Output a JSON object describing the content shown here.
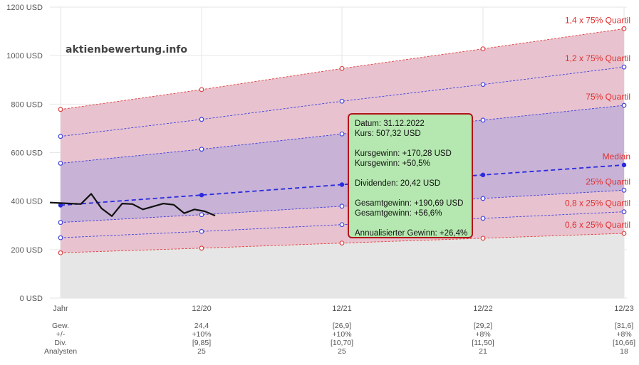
{
  "watermark": "aktienbewertung.info",
  "chart_data": {
    "type": "area",
    "y_unit": "USD",
    "ylim": [
      0,
      1200
    ],
    "y_ticks": [
      "0 USD",
      "200 USD",
      "400 USD",
      "600 USD",
      "800 USD",
      "1000 USD",
      "1200 USD"
    ],
    "x_labels": [
      "Jahr",
      "12/20",
      "12/21",
      "12/22",
      "12/23"
    ],
    "bands": [
      {
        "name": "1,4 x 75% Quartil",
        "values": [
          778,
          860,
          947,
          1028,
          1111
        ],
        "color": "#e04040"
      },
      {
        "name": "1,2 x 75% Quartil",
        "values": [
          667,
          737,
          812,
          881,
          953
        ],
        "color": "#4040e0"
      },
      {
        "name": "75% Quartil",
        "values": [
          556,
          614,
          677,
          734,
          795
        ],
        "color": "#4040e0"
      },
      {
        "name": "Median",
        "values": [
          383,
          425,
          468,
          508,
          549
        ],
        "color": "#2a2ae0"
      },
      {
        "name": "25% Quartil",
        "values": [
          312,
          344,
          379,
          411,
          445
        ],
        "color": "#4040e0"
      },
      {
        "name": "0,8 x 25% Quartil",
        "values": [
          249,
          275,
          303,
          329,
          356
        ],
        "color": "#4040e0"
      },
      {
        "name": "0,6 x 25% Quartil",
        "values": [
          187,
          206,
          227,
          247,
          267
        ],
        "color": "#e04040"
      }
    ],
    "price_history": [
      394,
      392,
      390,
      388,
      430,
      370,
      338,
      390,
      388,
      366,
      378,
      390,
      385,
      350,
      366,
      358,
      340
    ],
    "table": {
      "row_labels": [
        "Gew.",
        "+/-",
        "Div.",
        "Analysten"
      ],
      "columns": [
        {
          "x": "12/20",
          "values": [
            "24,4",
            "+10%",
            "[9,85]",
            "25"
          ]
        },
        {
          "x": "12/21",
          "values": [
            "[26,9]",
            "+10%",
            "[10,70]",
            "25"
          ]
        },
        {
          "x": "12/22",
          "values": [
            "[29,2]",
            "+8%",
            "[11,50]",
            "21"
          ]
        },
        {
          "x": "12/23",
          "values": [
            "[31,6]",
            "+8%",
            "[10,66]",
            "18"
          ]
        }
      ]
    }
  },
  "tooltip": {
    "datum": "Datum: 31.12.2022",
    "kurs": "Kurs: 507,32 USD",
    "kursgewinn_abs": "Kursgewinn: +170,28 USD",
    "kursgewinn_pct": "Kursgewinn: +50,5%",
    "dividenden": "Dividenden: 20,42 USD",
    "gesamt_abs": "Gesamtgewinn: +190,69 USD",
    "gesamt_pct": "Gesamtgewinn: +56,6%",
    "annual": "Annualisierter Gewinn: +26,4%"
  }
}
